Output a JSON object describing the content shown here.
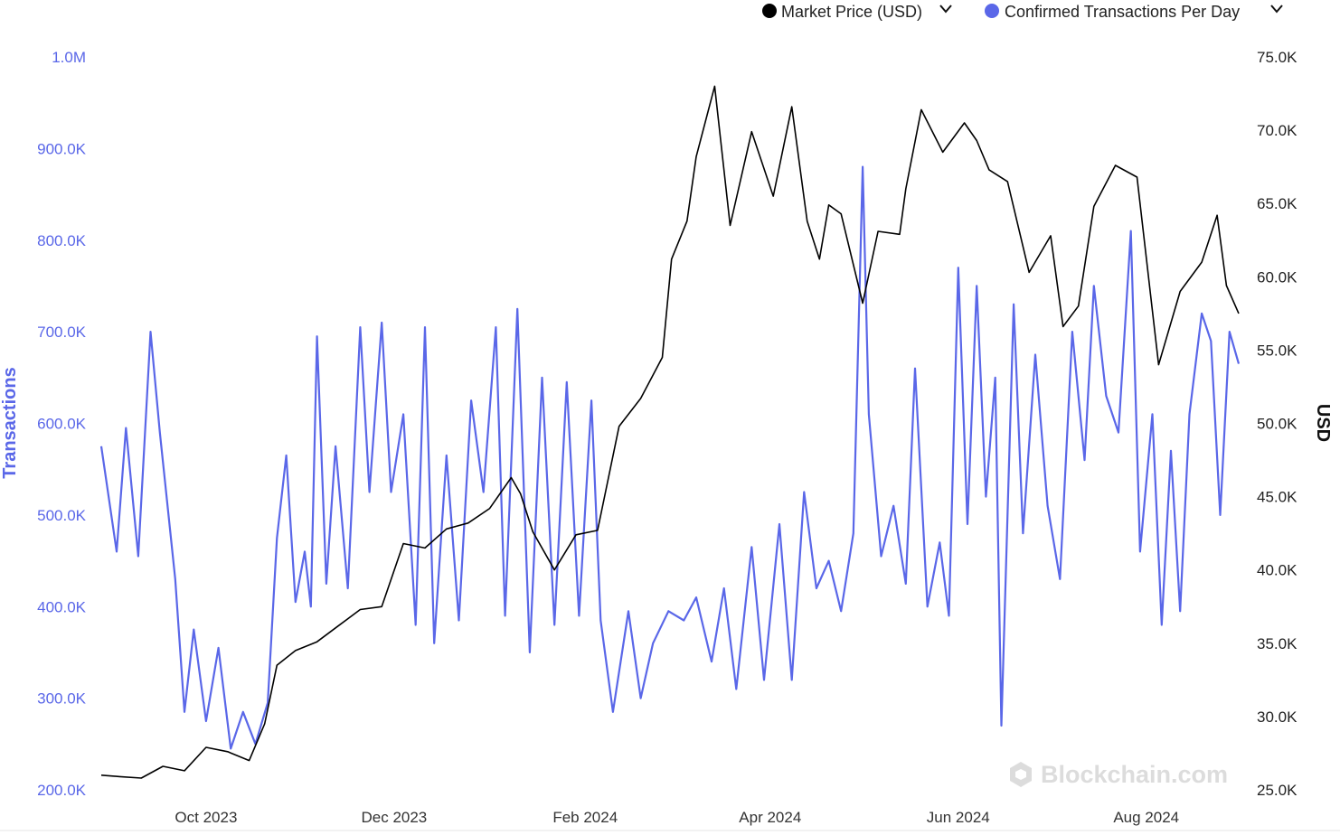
{
  "legend": {
    "items": [
      {
        "label": "Market Price (USD)",
        "color": "#000000",
        "icon": "chevron-down-icon"
      },
      {
        "label": "Confirmed Transactions Per Day",
        "color": "#5a67e8",
        "icon": "chevron-down-icon"
      }
    ]
  },
  "watermark": {
    "text": "Blockchain.com",
    "icon": "blockchain-logo-icon"
  },
  "chart_data": {
    "type": "line",
    "x_axis": {
      "type": "date",
      "range": [
        "2023-08-28",
        "2024-08-31"
      ],
      "tick_labels": [
        {
          "date": "2023-10-01",
          "label": "Oct 2023"
        },
        {
          "date": "2023-12-01",
          "label": "Dec 2023"
        },
        {
          "date": "2024-02-01",
          "label": "Feb 2024"
        },
        {
          "date": "2024-04-01",
          "label": "Apr 2024"
        },
        {
          "date": "2024-06-01",
          "label": "Jun 2024"
        },
        {
          "date": "2024-08-01",
          "label": "Aug 2024"
        }
      ]
    },
    "y_axis_left": {
      "label": "Transactions",
      "range": [
        200000,
        1000000
      ],
      "ticks": [
        200000,
        300000,
        400000,
        500000,
        600000,
        700000,
        800000,
        900000,
        1000000
      ],
      "tick_labels": [
        "200.0K",
        "300.0K",
        "400.0K",
        "500.0K",
        "600.0K",
        "700.0K",
        "800.0K",
        "900.0K",
        "1.0M"
      ],
      "color": "#5a67e8"
    },
    "y_axis_right": {
      "label": "USD",
      "range": [
        25000,
        75000
      ],
      "ticks": [
        25000,
        30000,
        35000,
        40000,
        45000,
        50000,
        55000,
        60000,
        65000,
        70000,
        75000
      ],
      "tick_labels": [
        "25.0K",
        "30.0K",
        "35.0K",
        "40.0K",
        "45.0K",
        "50.0K",
        "55.0K",
        "60.0K",
        "65.0K",
        "70.0K",
        "75.0K"
      ],
      "color": "#111111"
    },
    "grid": false,
    "legend_position": "top-right",
    "series": [
      {
        "name": "Market Price (USD)",
        "axis": "right",
        "color": "#000000",
        "points": [
          [
            "2023-08-28",
            26000
          ],
          [
            "2023-09-03",
            25900
          ],
          [
            "2023-09-10",
            25800
          ],
          [
            "2023-09-17",
            26600
          ],
          [
            "2023-09-24",
            26300
          ],
          [
            "2023-10-01",
            27900
          ],
          [
            "2023-10-08",
            27600
          ],
          [
            "2023-10-15",
            27000
          ],
          [
            "2023-10-20",
            29500
          ],
          [
            "2023-10-24",
            33500
          ],
          [
            "2023-10-30",
            34500
          ],
          [
            "2023-11-06",
            35100
          ],
          [
            "2023-11-13",
            36200
          ],
          [
            "2023-11-20",
            37300
          ],
          [
            "2023-11-27",
            37500
          ],
          [
            "2023-12-04",
            41800
          ],
          [
            "2023-12-11",
            41500
          ],
          [
            "2023-12-18",
            42800
          ],
          [
            "2023-12-25",
            43200
          ],
          [
            "2024-01-01",
            44200
          ],
          [
            "2024-01-08",
            46300
          ],
          [
            "2024-01-11",
            45200
          ],
          [
            "2024-01-15",
            42600
          ],
          [
            "2024-01-22",
            40000
          ],
          [
            "2024-01-29",
            42400
          ],
          [
            "2024-02-05",
            42700
          ],
          [
            "2024-02-12",
            49800
          ],
          [
            "2024-02-19",
            51700
          ],
          [
            "2024-02-26",
            54500
          ],
          [
            "2024-02-29",
            61200
          ],
          [
            "2024-03-05",
            63800
          ],
          [
            "2024-03-08",
            68200
          ],
          [
            "2024-03-14",
            73000
          ],
          [
            "2024-03-19",
            63500
          ],
          [
            "2024-03-26",
            69900
          ],
          [
            "2024-04-02",
            65500
          ],
          [
            "2024-04-08",
            71600
          ],
          [
            "2024-04-13",
            63800
          ],
          [
            "2024-04-17",
            61200
          ],
          [
            "2024-04-20",
            64900
          ],
          [
            "2024-04-24",
            64300
          ],
          [
            "2024-05-01",
            58200
          ],
          [
            "2024-05-06",
            63100
          ],
          [
            "2024-05-13",
            62900
          ],
          [
            "2024-05-15",
            66000
          ],
          [
            "2024-05-20",
            71400
          ],
          [
            "2024-05-27",
            68500
          ],
          [
            "2024-06-03",
            70500
          ],
          [
            "2024-06-07",
            69300
          ],
          [
            "2024-06-11",
            67300
          ],
          [
            "2024-06-17",
            66500
          ],
          [
            "2024-06-24",
            60300
          ],
          [
            "2024-07-01",
            62800
          ],
          [
            "2024-07-05",
            56600
          ],
          [
            "2024-07-10",
            58000
          ],
          [
            "2024-07-15",
            64800
          ],
          [
            "2024-07-22",
            67600
          ],
          [
            "2024-07-29",
            66800
          ],
          [
            "2024-08-05",
            54000
          ],
          [
            "2024-08-12",
            59000
          ],
          [
            "2024-08-19",
            61000
          ],
          [
            "2024-08-24",
            64200
          ],
          [
            "2024-08-27",
            59400
          ],
          [
            "2024-08-31",
            57500
          ]
        ]
      },
      {
        "name": "Confirmed Transactions Per Day",
        "axis": "left",
        "color": "#5a67e8",
        "points": [
          [
            "2023-08-28",
            575000
          ],
          [
            "2023-09-02",
            460000
          ],
          [
            "2023-09-05",
            595000
          ],
          [
            "2023-09-09",
            455000
          ],
          [
            "2023-09-13",
            700000
          ],
          [
            "2023-09-16",
            590000
          ],
          [
            "2023-09-21",
            430000
          ],
          [
            "2023-09-24",
            285000
          ],
          [
            "2023-09-27",
            375000
          ],
          [
            "2023-10-01",
            275000
          ],
          [
            "2023-10-05",
            355000
          ],
          [
            "2023-10-09",
            245000
          ],
          [
            "2023-10-13",
            285000
          ],
          [
            "2023-10-17",
            250000
          ],
          [
            "2023-10-21",
            295000
          ],
          [
            "2023-10-24",
            475000
          ],
          [
            "2023-10-27",
            565000
          ],
          [
            "2023-10-30",
            405000
          ],
          [
            "2023-11-02",
            460000
          ],
          [
            "2023-11-04",
            400000
          ],
          [
            "2023-11-06",
            695000
          ],
          [
            "2023-11-09",
            425000
          ],
          [
            "2023-11-12",
            575000
          ],
          [
            "2023-11-16",
            420000
          ],
          [
            "2023-11-20",
            705000
          ],
          [
            "2023-11-23",
            525000
          ],
          [
            "2023-11-27",
            710000
          ],
          [
            "2023-11-30",
            525000
          ],
          [
            "2023-12-04",
            610000
          ],
          [
            "2023-12-08",
            380000
          ],
          [
            "2023-12-11",
            705000
          ],
          [
            "2023-12-14",
            360000
          ],
          [
            "2023-12-18",
            565000
          ],
          [
            "2023-12-22",
            385000
          ],
          [
            "2023-12-26",
            625000
          ],
          [
            "2023-12-30",
            525000
          ],
          [
            "2024-01-03",
            705000
          ],
          [
            "2024-01-06",
            390000
          ],
          [
            "2024-01-10",
            725000
          ],
          [
            "2024-01-14",
            350000
          ],
          [
            "2024-01-18",
            650000
          ],
          [
            "2024-01-22",
            380000
          ],
          [
            "2024-01-26",
            645000
          ],
          [
            "2024-01-30",
            390000
          ],
          [
            "2024-02-03",
            625000
          ],
          [
            "2024-02-06",
            385000
          ],
          [
            "2024-02-10",
            285000
          ],
          [
            "2024-02-15",
            395000
          ],
          [
            "2024-02-19",
            300000
          ],
          [
            "2024-02-23",
            360000
          ],
          [
            "2024-02-28",
            395000
          ],
          [
            "2024-03-04",
            385000
          ],
          [
            "2024-03-08",
            410000
          ],
          [
            "2024-03-13",
            340000
          ],
          [
            "2024-03-17",
            420000
          ],
          [
            "2024-03-21",
            310000
          ],
          [
            "2024-03-26",
            465000
          ],
          [
            "2024-03-30",
            320000
          ],
          [
            "2024-04-04",
            490000
          ],
          [
            "2024-04-08",
            320000
          ],
          [
            "2024-04-12",
            525000
          ],
          [
            "2024-04-16",
            420000
          ],
          [
            "2024-04-20",
            450000
          ],
          [
            "2024-04-24",
            395000
          ],
          [
            "2024-04-28",
            480000
          ],
          [
            "2024-05-01",
            880000
          ],
          [
            "2024-05-03",
            610000
          ],
          [
            "2024-05-07",
            455000
          ],
          [
            "2024-05-11",
            510000
          ],
          [
            "2024-05-15",
            425000
          ],
          [
            "2024-05-18",
            660000
          ],
          [
            "2024-05-22",
            400000
          ],
          [
            "2024-05-26",
            470000
          ],
          [
            "2024-05-29,",
            390000
          ],
          [
            "2024-06-01",
            770000
          ],
          [
            "2024-06-04",
            490000
          ],
          [
            "2024-06-07",
            750000
          ],
          [
            "2024-06-10",
            520000
          ],
          [
            "2024-06-13",
            650000
          ],
          [
            "2024-06-15",
            270000
          ],
          [
            "2024-06-19",
            730000
          ],
          [
            "2024-06-22",
            480000
          ],
          [
            "2024-06-26",
            675000
          ],
          [
            "2024-06-30",
            510000
          ],
          [
            "2024-07-04",
            430000
          ],
          [
            "2024-07-08",
            700000
          ],
          [
            "2024-07-12",
            560000
          ],
          [
            "2024-07-15",
            750000
          ],
          [
            "2024-07-19",
            630000
          ],
          [
            "2024-07-23",
            590000
          ],
          [
            "2024-07-27",
            810000
          ],
          [
            "2024-07-30",
            460000
          ],
          [
            "2024-08-03",
            610000
          ],
          [
            "2024-08-06",
            380000
          ],
          [
            "2024-08-09",
            570000
          ],
          [
            "2024-08-12",
            395000
          ],
          [
            "2024-08-15",
            610000
          ],
          [
            "2024-08-19",
            720000
          ],
          [
            "2024-08-22",
            690000
          ],
          [
            "2024-08-25",
            500000
          ],
          [
            "2024-08-28",
            700000
          ],
          [
            "2024-08-31",
            665000
          ]
        ]
      }
    ]
  }
}
